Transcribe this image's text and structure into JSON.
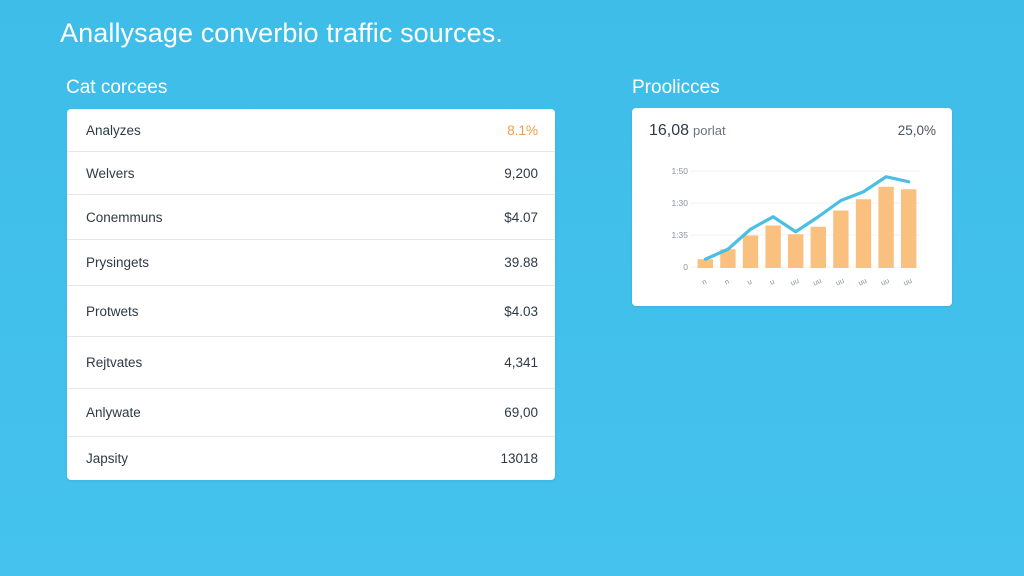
{
  "header": {
    "title": "Anallysage converbio traffic sources."
  },
  "table_panel": {
    "title": "Cat corcees",
    "rows": [
      {
        "label": "Analyzes",
        "value": "8.1%",
        "accent": true
      },
      {
        "label": "Welvers",
        "value": "9,200"
      },
      {
        "label": "Conemmuns",
        "value": "$4.07"
      },
      {
        "label": "Prysingets",
        "value": "39.88"
      },
      {
        "label": "Protwets",
        "value": "$4.03"
      },
      {
        "label": "Rejtvates",
        "value": "4,341"
      },
      {
        "label": "Anlywate",
        "value": "69,00"
      },
      {
        "label": "Japsity",
        "value": "13018"
      }
    ]
  },
  "chart_panel": {
    "title": "Proolicces",
    "headline_value": "16,08",
    "headline_sub": "porlat",
    "headline_right": "25,0%"
  },
  "colors": {
    "background": "#42c0ec",
    "bar": "#f9c07f",
    "line": "#4bbfe3",
    "accent": "#f29b42"
  },
  "chart_data": {
    "type": "bar",
    "y_tick_labels": [
      "0",
      "1:35",
      "1:30",
      "1:50"
    ],
    "x_tick_labels": [
      "n",
      "n",
      "u",
      "u",
      "uu",
      "uu",
      "uu",
      "uu",
      "uu",
      "uu"
    ],
    "ylim": [
      0,
      4
    ],
    "bars": [
      0.35,
      0.75,
      1.3,
      1.7,
      1.35,
      1.65,
      2.3,
      2.75,
      3.25,
      3.15
    ],
    "line": [
      0.35,
      0.75,
      1.55,
      2.05,
      1.45,
      2.05,
      2.7,
      3.05,
      3.65,
      3.45
    ],
    "legend": "none",
    "grid": "horizontal"
  }
}
